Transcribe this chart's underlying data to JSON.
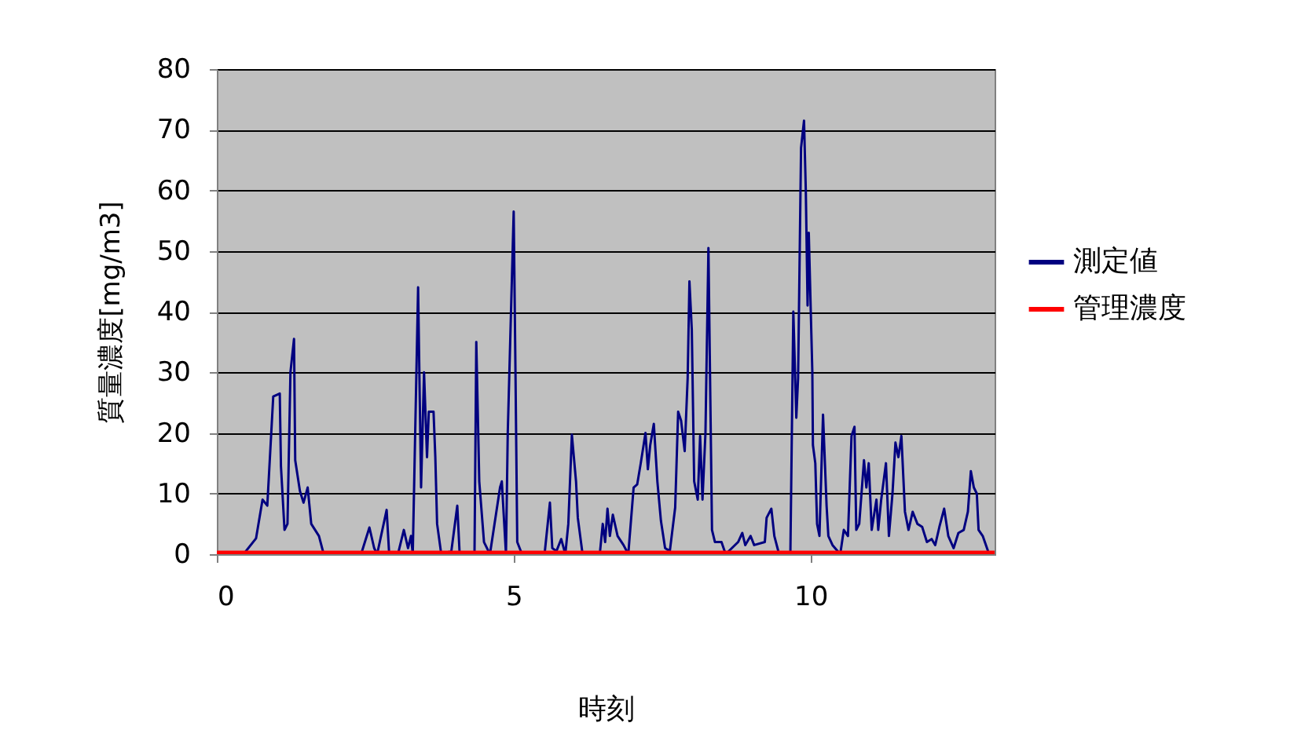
{
  "chart_data": {
    "type": "line",
    "xlabel": "時刻",
    "ylabel": "質量濃度[mg/m3]",
    "xlim": [
      0,
      13.1
    ],
    "xticks": [
      0,
      5,
      10
    ],
    "ylim": [
      0,
      80
    ],
    "yticks": [
      0,
      10,
      20,
      30,
      40,
      50,
      60,
      70,
      80
    ],
    "grid": "y",
    "legend": "right",
    "series": [
      {
        "name": "測定値",
        "color": "#000080",
        "x": [
          0,
          0.45,
          0.66,
          0.77,
          0.85,
          0.95,
          1.06,
          1.08,
          1.14,
          1.19,
          1.24,
          1.3,
          1.32,
          1.4,
          1.46,
          1.53,
          1.59,
          1.72,
          1.8,
          2.43,
          2.57,
          2.65,
          2.7,
          2.86,
          2.9,
          3.05,
          3.15,
          3.22,
          3.27,
          3.3,
          3.39,
          3.44,
          3.49,
          3.54,
          3.57,
          3.65,
          3.68,
          3.71,
          3.78,
          3.95,
          4.05,
          4.09,
          4.34,
          4.37,
          4.42,
          4.5,
          4.6,
          4.77,
          4.8,
          4.87,
          4.9,
          5.0,
          5.03,
          5.06,
          5.14,
          5.52,
          5.61,
          5.65,
          5.72,
          5.8,
          5.87,
          5.92,
          5.98,
          6.05,
          6.08,
          6.16,
          6.45,
          6.5,
          6.54,
          6.58,
          6.62,
          6.67,
          6.75,
          6.85,
          6.93,
          7.02,
          7.08,
          7.14,
          7.22,
          7.26,
          7.3,
          7.36,
          7.42,
          7.48,
          7.55,
          7.63,
          7.72,
          7.77,
          7.82,
          7.88,
          7.93,
          7.96,
          8.0,
          8.04,
          8.1,
          8.14,
          8.18,
          8.23,
          8.28,
          8.34,
          8.39,
          8.5,
          8.57,
          8.78,
          8.85,
          8.9,
          8.99,
          9.05,
          9.23,
          9.26,
          9.34,
          9.39,
          9.47,
          9.66,
          9.71,
          9.76,
          9.79,
          9.84,
          9.89,
          9.92,
          9.95,
          9.97,
          10.03,
          10.04,
          10.08,
          10.11,
          10.15,
          10.21,
          10.27,
          10.3,
          10.37,
          10.5,
          10.56,
          10.63,
          10.69,
          10.74,
          10.77,
          10.82,
          10.9,
          10.94,
          10.98,
          11.03,
          11.11,
          11.14,
          11.19,
          11.27,
          11.32,
          11.38,
          11.43,
          11.48,
          11.53,
          11.59,
          11.65,
          11.72,
          11.8,
          11.88,
          11.96,
          12.04,
          12.1,
          12.17,
          12.25,
          12.32,
          12.41,
          12.49,
          12.58,
          12.65,
          12.7,
          12.75,
          12.8,
          12.83,
          12.9,
          12.99
        ],
        "values": [
          0,
          0,
          2.6,
          9,
          8,
          26,
          26.5,
          14.5,
          4,
          5,
          30,
          35.5,
          15.5,
          10.4,
          8.5,
          11,
          5,
          3,
          0,
          0,
          4.4,
          1,
          0,
          7.3,
          0.5,
          0,
          4,
          1,
          3,
          0,
          44,
          11,
          30,
          16,
          23.5,
          23.5,
          16,
          5,
          0,
          0.5,
          8,
          0,
          0,
          35,
          12,
          2,
          0,
          11,
          12,
          0,
          20,
          56.5,
          30,
          2,
          0,
          0,
          8.5,
          1,
          0.5,
          2.5,
          0,
          5,
          19.7,
          12,
          6,
          0,
          0,
          5,
          2,
          7.5,
          3,
          6.5,
          3,
          1.5,
          0,
          11,
          11.5,
          15,
          20,
          14,
          18,
          21.5,
          12,
          5.5,
          1,
          0.5,
          7.7,
          23.5,
          22,
          17,
          29,
          45,
          37,
          12,
          9,
          19.5,
          9,
          20,
          50.5,
          4,
          2,
          2,
          0,
          2,
          3.5,
          1.5,
          3,
          1.5,
          2,
          6,
          7.5,
          3,
          0,
          0,
          40,
          22.5,
          29,
          67,
          71.5,
          60,
          41,
          53,
          30,
          18,
          15,
          5,
          3,
          23,
          8,
          3,
          1.5,
          0,
          4,
          3,
          19.5,
          21,
          4,
          5,
          15.5,
          11,
          15,
          4,
          9,
          4,
          9,
          15,
          3,
          10,
          18.4,
          16,
          19.5,
          7,
          4,
          7,
          5,
          4.5,
          2,
          2.5,
          1.5,
          4.5,
          7.5,
          3,
          1,
          3.5,
          4,
          7,
          13.7,
          11,
          10,
          4,
          3,
          0.5
        ]
      },
      {
        "name": "管理濃度",
        "color": "#ff0000",
        "x": [
          0,
          13.1
        ],
        "values": [
          0,
          0
        ]
      }
    ]
  }
}
